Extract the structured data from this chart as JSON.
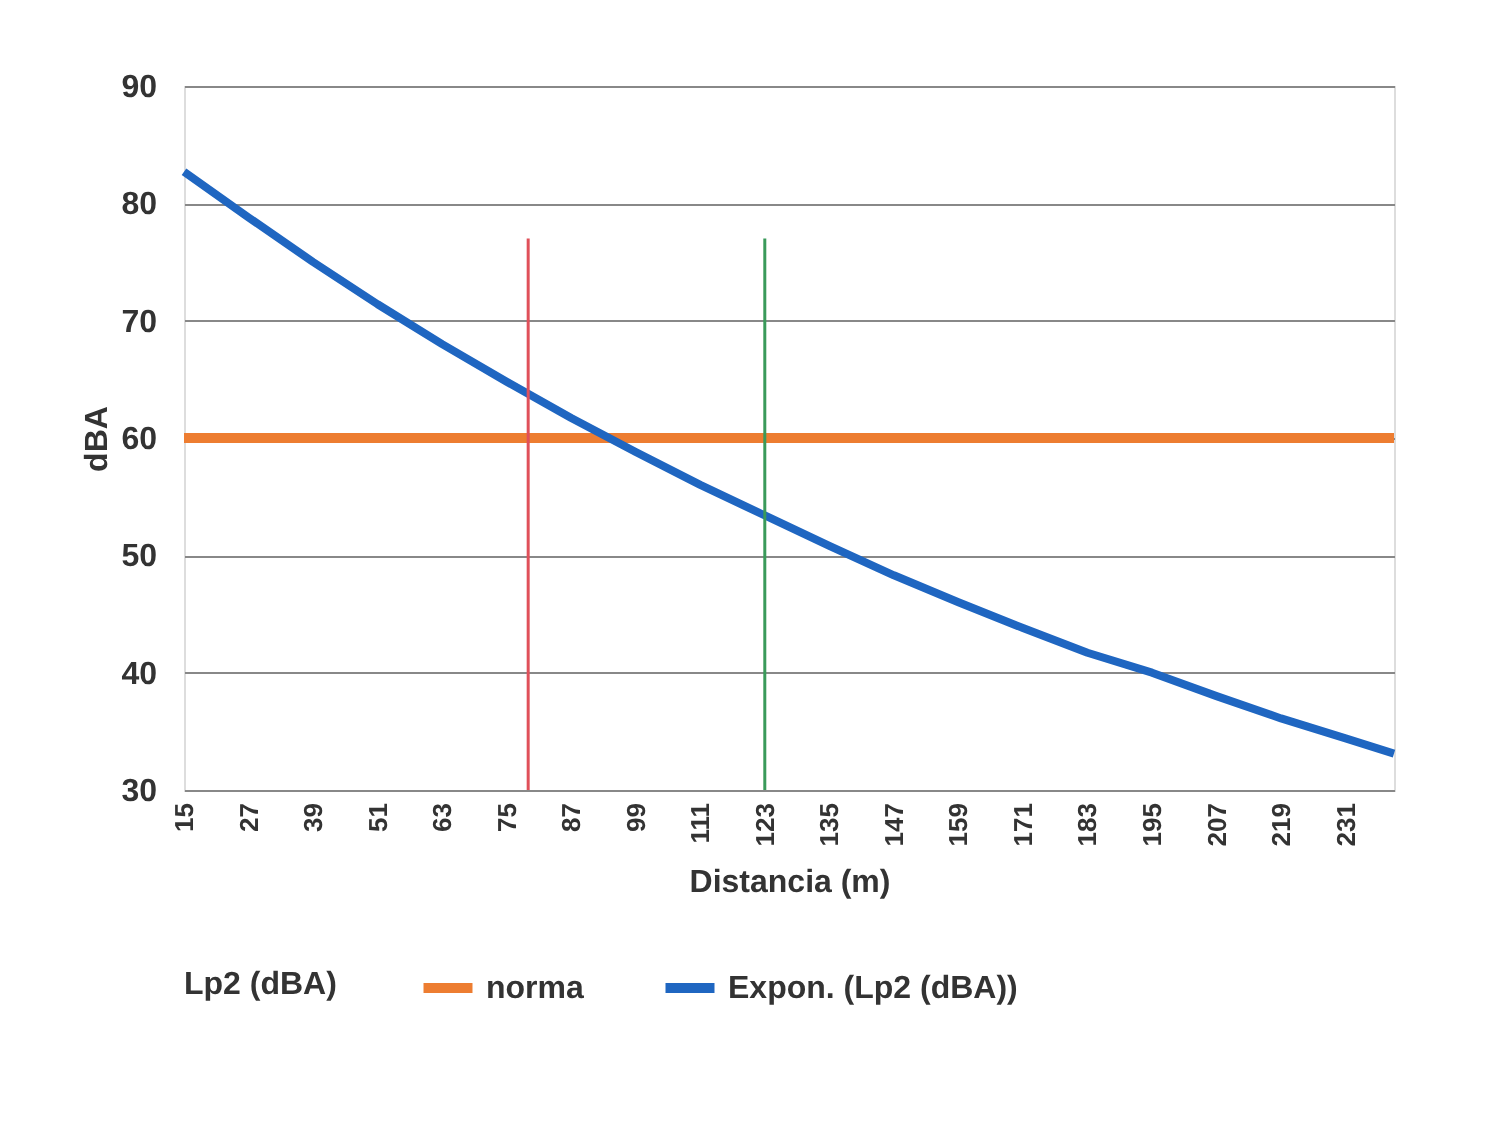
{
  "chart_data": {
    "type": "line",
    "xlabel": "Distancia (m)",
    "ylabel": "dBA",
    "legend_title": "Lp2 (dBA)",
    "xlim": [
      15,
      240
    ],
    "ylim": [
      30,
      90
    ],
    "xticks": [
      15,
      27,
      39,
      51,
      63,
      75,
      87,
      99,
      111,
      123,
      135,
      147,
      159,
      171,
      183,
      195,
      207,
      219,
      231
    ],
    "yticks": [
      30,
      40,
      50,
      60,
      70,
      80,
      90
    ],
    "grid": "y",
    "legend": "bottom",
    "marker": "none",
    "line_style": "solid",
    "series": [
      {
        "name": "norma",
        "color": "#ed7d31",
        "x": [
          15,
          240
        ],
        "values": [
          60,
          60
        ]
      },
      {
        "name": "Expon. (Lp2 (dBA))",
        "color": "#1f66c1",
        "x": [
          15,
          27,
          39,
          51,
          63,
          75,
          87,
          99,
          111,
          123,
          135,
          147,
          159,
          171,
          183,
          195,
          207,
          219,
          231,
          240
        ],
        "values": [
          82.7,
          78.8,
          75.0,
          71.4,
          68.0,
          64.8,
          61.7,
          58.8,
          56.0,
          53.4,
          50.8,
          48.3,
          46.0,
          43.8,
          41.7,
          40.0,
          38.0,
          36.1,
          34.4,
          33.1
        ]
      },
      {
        "color": "#e0505a",
        "x": [
          79,
          79
        ],
        "values": [
          30,
          77
        ]
      },
      {
        "color": "#3a9a5a",
        "x": [
          123,
          123
        ],
        "values": [
          30,
          77
        ]
      }
    ]
  }
}
